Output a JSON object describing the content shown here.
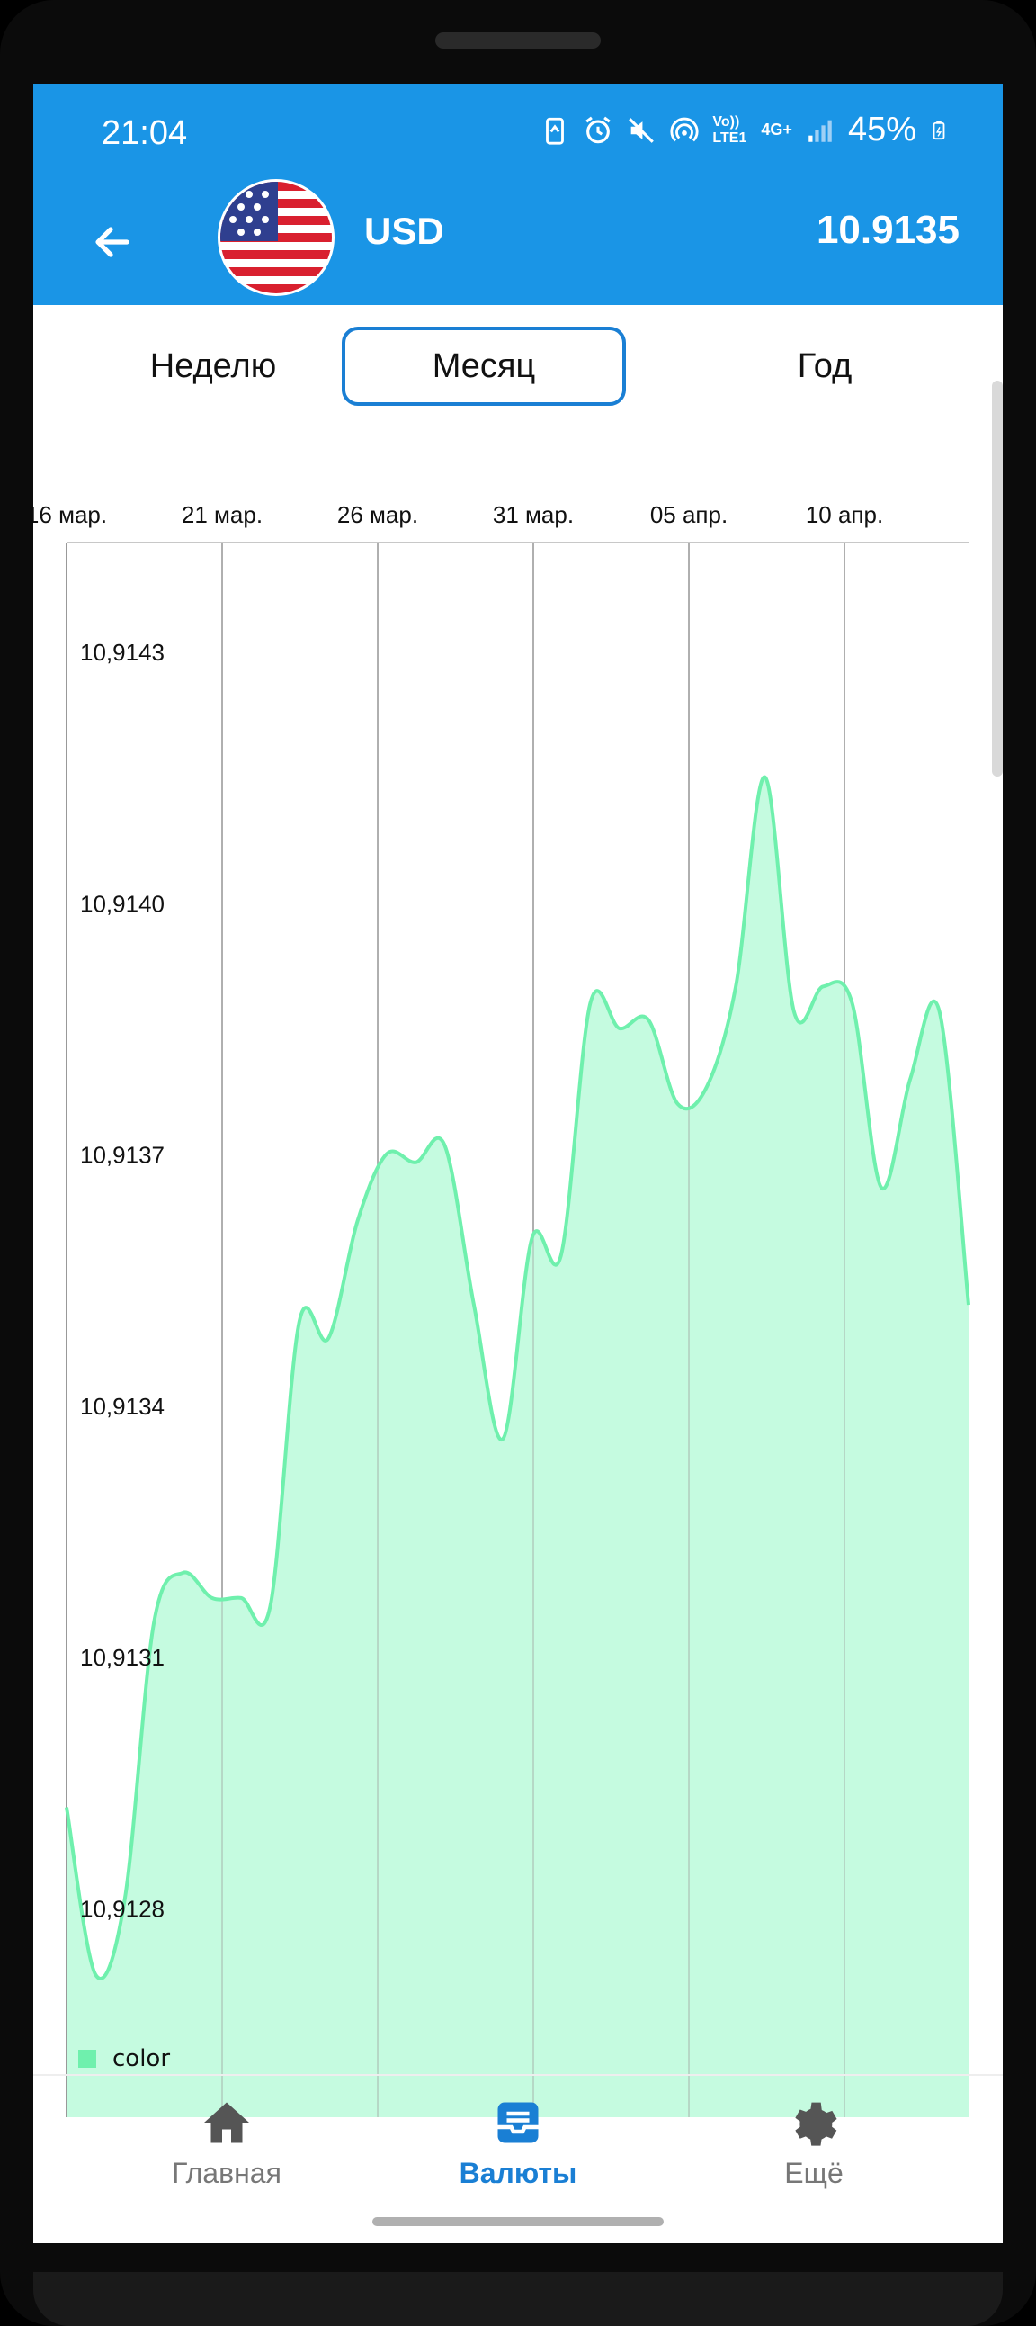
{
  "status_bar": {
    "time": "21:04",
    "lte_label": "Vo)) LTE1",
    "net_label": "4G+",
    "battery": "45%"
  },
  "header": {
    "currency_code": "USD",
    "rate": "10.9135"
  },
  "tabs": [
    {
      "label": "Неделю",
      "active": false
    },
    {
      "label": "Месяц",
      "active": true
    },
    {
      "label": "Год",
      "active": false
    }
  ],
  "chart_data": {
    "type": "area",
    "x_ticks": [
      "16 мар.",
      "21 мар.",
      "26 мар.",
      "31 мар.",
      "05 апр.",
      "10 апр."
    ],
    "y_ticks": [
      "10,9143",
      "10,9140",
      "10,9137",
      "10,9134",
      "10,9131",
      "10,9128"
    ],
    "ylim": [
      10.91255,
      10.91443
    ],
    "legend": "color",
    "color": "#6ff0ad",
    "fill_color": "#c5fbe0",
    "series": [
      {
        "values": [
          10.91292,
          10.91272,
          10.91281,
          10.91314,
          10.9132,
          10.91317,
          10.91317,
          10.91316,
          10.9135,
          10.91348,
          10.91362,
          10.9137,
          10.91369,
          10.91371,
          10.91352,
          10.91336,
          10.9136,
          10.91358,
          10.91388,
          10.91385,
          10.91386,
          10.91376,
          10.91378,
          10.9139,
          10.91415,
          10.91387,
          10.9139,
          10.91388,
          10.91366,
          10.91379,
          10.91387,
          10.91352
        ]
      }
    ]
  },
  "nav": [
    {
      "label": "Главная",
      "icon": "home-icon",
      "active": false
    },
    {
      "label": "Валюты",
      "icon": "currencies-icon",
      "active": true
    },
    {
      "label": "Ещё",
      "icon": "gear-icon",
      "active": false
    }
  ],
  "colors": {
    "accent": "#1a95e6",
    "active_nav": "#1a7fd4",
    "series": "#6ff0ad"
  }
}
